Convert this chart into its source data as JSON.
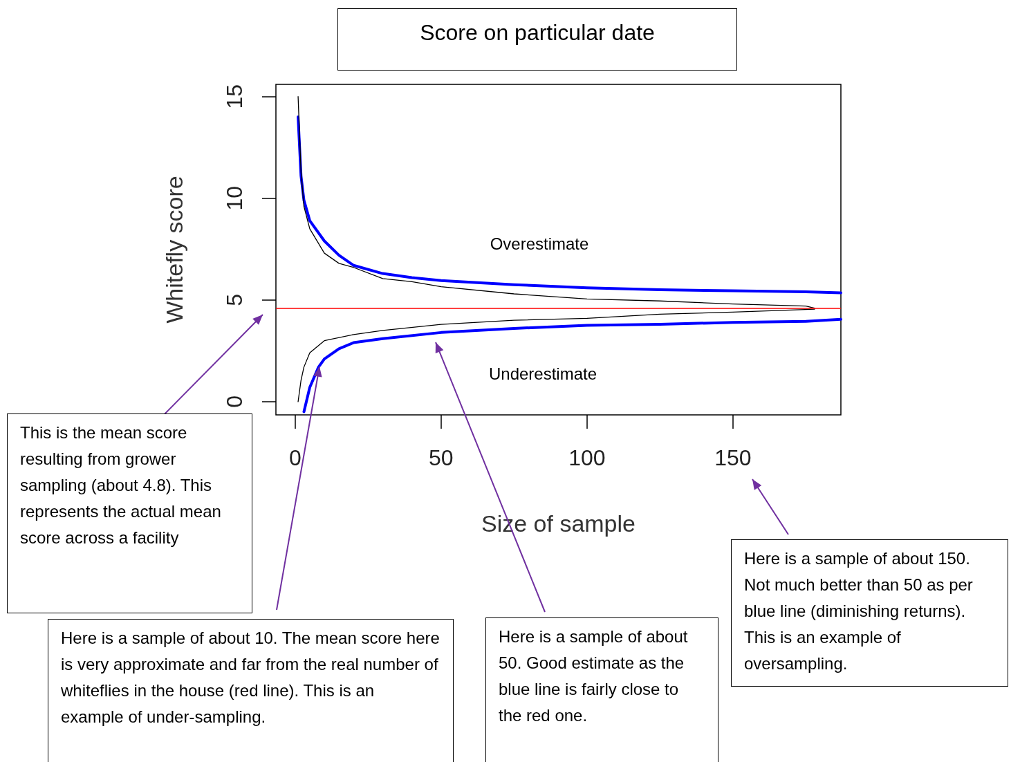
{
  "chart_data": {
    "type": "line",
    "title": "Score on particular date",
    "xlabel": "Size of sample",
    "ylabel": "Whitefly score",
    "xlim": [
      -6.6,
      187
    ],
    "xticks": [
      0,
      50,
      100,
      150
    ],
    "ylim": [
      -0.65,
      15.6
    ],
    "yticks": [
      0,
      5,
      10,
      15
    ],
    "grid": false,
    "marker": "none",
    "line_style": "solid",
    "series": [
      {
        "color": "#0000ff",
        "x": [
          1,
          2,
          3,
          5,
          10,
          15,
          20,
          30,
          40,
          50,
          75,
          100,
          125,
          150,
          175,
          187
        ],
        "values": [
          14,
          11.1,
          9.9,
          8.9,
          7.9,
          7.2,
          6.7,
          6.3,
          6.1,
          5.95,
          5.75,
          5.6,
          5.5,
          5.45,
          5.4,
          5.35
        ]
      },
      {
        "color": "#0000ff",
        "x": [
          3,
          5,
          8,
          10,
          15,
          20,
          30,
          50,
          75,
          100,
          125,
          150,
          175,
          187
        ],
        "values": [
          -0.5,
          0.7,
          1.7,
          2.1,
          2.6,
          2.9,
          3.1,
          3.4,
          3.6,
          3.75,
          3.8,
          3.9,
          3.95,
          4.05
        ]
      },
      {
        "color": "#000000",
        "x": [
          1,
          2,
          3,
          5,
          10,
          15,
          20,
          30,
          40,
          50,
          75,
          100,
          125,
          150,
          175,
          178
        ],
        "values": [
          15,
          11.3,
          9.6,
          8.5,
          7.3,
          6.8,
          6.6,
          6.05,
          5.9,
          5.65,
          5.3,
          5.05,
          4.95,
          4.8,
          4.7,
          4.6
        ]
      },
      {
        "color": "#000000",
        "x": [
          1,
          2,
          3,
          5,
          10,
          20,
          30,
          50,
          75,
          100,
          125,
          150,
          178
        ],
        "values": [
          0,
          1.05,
          1.7,
          2.4,
          3.0,
          3.3,
          3.5,
          3.8,
          4.0,
          4.1,
          4.3,
          4.4,
          4.55
        ]
      }
    ],
    "ref_lines": [
      {
        "axis": "y",
        "value": 4.6,
        "color": "#ff0000"
      }
    ],
    "annotations": [
      "Overestimate",
      "Underestimate",
      "This is the mean score resulting from grower sampling (about 4.8). This represents the actual mean score across a facility",
      "Here is a sample of about 10.  The mean score here is very approximate and far from the real number of whiteflies in the house (red line). This is an example of under-sampling.",
      "Here is a sample of about 50.  Good estimate as the blue line is fairly close to the red one.",
      "Here is a sample of about 150. Not much better than 50 as per blue line (diminishing returns). This is an example of oversampling."
    ]
  }
}
